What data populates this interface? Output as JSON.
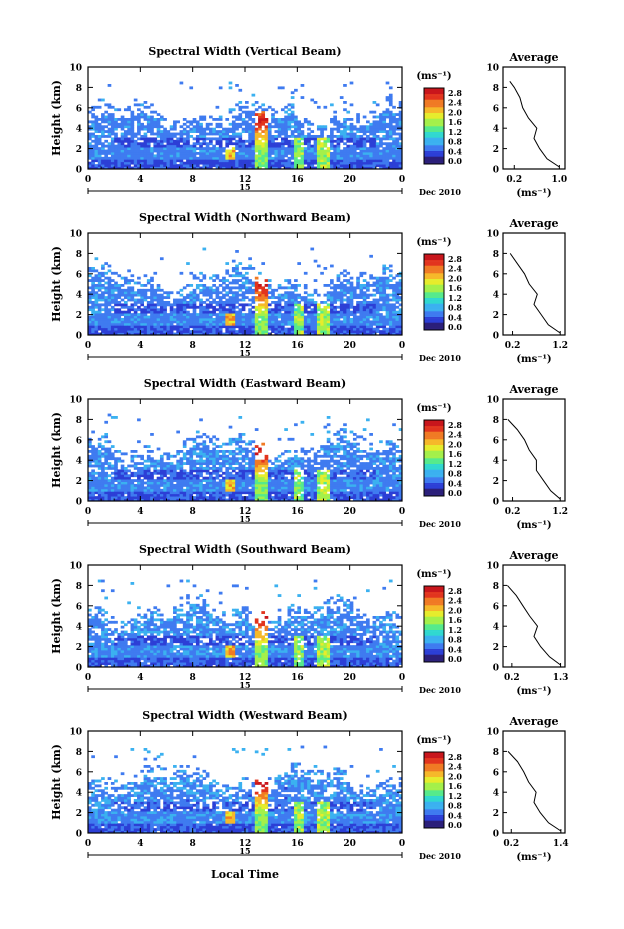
{
  "figure": {
    "xlabel": "Local Time",
    "colorbar_unit": "(ms⁻¹)",
    "colorbar_ticks": [
      "2.8",
      "2.4",
      "2.0",
      "1.6",
      "1.2",
      "0.8",
      "0.4",
      "0.0"
    ],
    "x_ticks": [
      "0",
      "4",
      "8",
      "12",
      "16",
      "20",
      "0"
    ],
    "y_ticks": [
      "0",
      "2",
      "4",
      "6",
      "8",
      "10"
    ],
    "day_label": "15",
    "date_label": "Dec 2010",
    "avg_title": "Average",
    "avg_xlabel": "(ms⁻¹)",
    "colormap": [
      "#2b1f7a",
      "#2c3fd6",
      "#3f7bf0",
      "#3bb1f0",
      "#30d8d0",
      "#56ea8c",
      "#a4f04a",
      "#e6ec2c",
      "#f6b82a",
      "#f07a24",
      "#e2341e",
      "#c9161c"
    ]
  },
  "chart_data": [
    {
      "type": "heatmap",
      "title": "Spectral Width (Vertical Beam)",
      "xlabel": "Local Time",
      "ylabel": "Height (km)",
      "xlim": [
        0,
        24
      ],
      "ylim": [
        0,
        10
      ],
      "clim": [
        0.0,
        3.0
      ],
      "average_profile": {
        "title": "Average",
        "xlabel": "(ms⁻¹)",
        "x_ticks": [
          "0.2",
          "1.0"
        ],
        "xlim": [
          0.0,
          1.1
        ],
        "heights": [
          0.2,
          1,
          2,
          3,
          4,
          5,
          6,
          7,
          8,
          8.6
        ],
        "values": [
          1.0,
          0.78,
          0.65,
          0.55,
          0.6,
          0.45,
          0.35,
          0.3,
          0.2,
          0.12
        ]
      }
    },
    {
      "type": "heatmap",
      "title": "Spectral Width (Northward Beam)",
      "xlabel": "Local Time",
      "ylabel": "Height (km)",
      "xlim": [
        0,
        24
      ],
      "ylim": [
        0,
        10
      ],
      "clim": [
        0.0,
        3.0
      ],
      "average_profile": {
        "title": "Average",
        "xlabel": "(ms⁻¹)",
        "x_ticks": [
          "0.2",
          "1.2"
        ],
        "xlim": [
          0.0,
          1.3
        ],
        "heights": [
          0.2,
          1,
          2,
          3,
          4,
          5,
          6,
          7,
          8
        ],
        "values": [
          1.2,
          0.95,
          0.8,
          0.65,
          0.72,
          0.55,
          0.45,
          0.3,
          0.15
        ]
      }
    },
    {
      "type": "heatmap",
      "title": "Spectral Width (Eastward Beam)",
      "xlabel": "Local Time",
      "ylabel": "Height (km)",
      "xlim": [
        0,
        24
      ],
      "ylim": [
        0,
        10
      ],
      "clim": [
        0.0,
        3.0
      ],
      "average_profile": {
        "title": "Average",
        "xlabel": "(ms⁻¹)",
        "x_ticks": [
          "0.2",
          "1.2"
        ],
        "xlim": [
          0.0,
          1.3
        ],
        "heights": [
          0.2,
          1,
          2,
          3,
          4,
          5,
          6,
          7,
          8
        ],
        "values": [
          1.2,
          1.0,
          0.85,
          0.7,
          0.7,
          0.55,
          0.45,
          0.3,
          0.1
        ]
      }
    },
    {
      "type": "heatmap",
      "title": "Spectral Width (Southward Beam)",
      "xlabel": "Local Time",
      "ylabel": "Height (km)",
      "xlim": [
        0,
        24
      ],
      "ylim": [
        0,
        10
      ],
      "clim": [
        0.0,
        3.0
      ],
      "average_profile": {
        "title": "Average",
        "xlabel": "(ms⁻¹)",
        "x_ticks": [
          "0.2",
          "1.3"
        ],
        "xlim": [
          0.0,
          1.4
        ],
        "heights": [
          0.2,
          1,
          2,
          3,
          4,
          5,
          6,
          7,
          8
        ],
        "values": [
          1.3,
          1.05,
          0.85,
          0.7,
          0.78,
          0.6,
          0.45,
          0.3,
          0.1
        ]
      }
    },
    {
      "type": "heatmap",
      "title": "Spectral Width (Westward Beam)",
      "xlabel": "Local Time",
      "ylabel": "Height (km)",
      "xlim": [
        0,
        24
      ],
      "ylim": [
        0,
        10
      ],
      "clim": [
        0.0,
        3.0
      ],
      "average_profile": {
        "title": "Average",
        "xlabel": "(ms⁻¹)",
        "x_ticks": [
          "0.2",
          "1.4"
        ],
        "xlim": [
          0.0,
          1.5
        ],
        "heights": [
          0.2,
          1,
          2,
          3,
          4,
          5,
          6,
          7,
          8
        ],
        "values": [
          1.4,
          1.1,
          0.9,
          0.75,
          0.8,
          0.62,
          0.5,
          0.35,
          0.12
        ]
      }
    }
  ]
}
